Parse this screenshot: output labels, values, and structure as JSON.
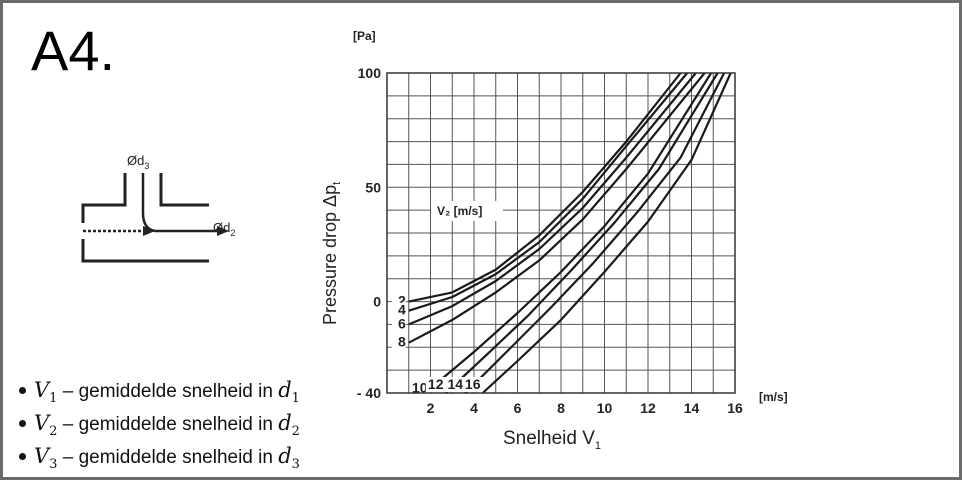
{
  "slide": {
    "title": "A4."
  },
  "diagram": {
    "outlet_branch_label": "Ød",
    "outlet_branch_sub": "3",
    "straight_outlet_label": "Ød",
    "straight_outlet_sub": "2"
  },
  "legend": [
    {
      "symbol": "V",
      "sub": "1",
      "text": " – gemiddelde snelheid in ",
      "target": "d",
      "target_sub": "1"
    },
    {
      "symbol": "V",
      "sub": "2",
      "text": " – gemiddelde snelheid in ",
      "target": "d",
      "target_sub": "2"
    },
    {
      "symbol": "V",
      "sub": "3",
      "text": " – gemiddelde snelheid in ",
      "target": "d",
      "target_sub": "3"
    }
  ],
  "chart_data": {
    "type": "line",
    "y_unit_label": "[Pa]",
    "ylabel": "Pressure drop Δp",
    "ylabel_sub": "t",
    "xlabel": "Snelheid V",
    "xlabel_sub": "1",
    "x_unit_label": "[m/s]",
    "curve_family_label": "V₂ [m/s]",
    "xlim": [
      0,
      16
    ],
    "ylim": [
      -40,
      100
    ],
    "x_ticks": [
      2,
      4,
      6,
      8,
      10,
      12,
      14,
      16
    ],
    "y_ticks": [
      {
        "value": 100,
        "label": "100"
      },
      {
        "value": 50,
        "label": "50"
      },
      {
        "value": 0,
        "label": "0"
      },
      {
        "value": -40,
        "label": "- 40"
      }
    ],
    "grid": true,
    "series": [
      {
        "name": "2",
        "x": [
          1,
          3,
          5,
          7,
          9,
          11,
          13.5
        ],
        "y": [
          0,
          4,
          14,
          29,
          48,
          70,
          100
        ]
      },
      {
        "name": "4",
        "x": [
          1,
          3,
          5,
          7,
          9,
          11,
          13.8
        ],
        "y": [
          -4,
          2,
          12,
          26,
          45,
          68,
          100
        ]
      },
      {
        "name": "6",
        "x": [
          1,
          3,
          5,
          7,
          9,
          11,
          14.2
        ],
        "y": [
          -10,
          -2,
          9,
          23,
          41,
          63,
          100
        ]
      },
      {
        "name": "8",
        "x": [
          1,
          3,
          5,
          7,
          9,
          11,
          14.6
        ],
        "y": [
          -18,
          -8,
          4,
          18,
          36,
          58,
          100
        ]
      },
      {
        "name": "10",
        "x": [
          2,
          4,
          6,
          8,
          10,
          12,
          14.9
        ],
        "y": [
          -38,
          -22,
          -5,
          13,
          33,
          56,
          100
        ]
      },
      {
        "name": "12",
        "x": [
          2.7,
          4.5,
          6.5,
          8.5,
          10.5,
          12.5,
          15.2
        ],
        "y": [
          -40,
          -24,
          -6,
          14,
          35,
          58,
          100
        ]
      },
      {
        "name": "14",
        "x": [
          3.6,
          5.5,
          7.5,
          9.5,
          11.5,
          13.5,
          15.5
        ],
        "y": [
          -40,
          -22,
          -3,
          17,
          39,
          63,
          100
        ]
      },
      {
        "name": "16",
        "x": [
          4.4,
          6,
          8,
          10,
          12,
          14,
          15.8
        ],
        "y": [
          -40,
          -26,
          -8,
          13,
          35,
          62,
          100
        ]
      }
    ]
  }
}
